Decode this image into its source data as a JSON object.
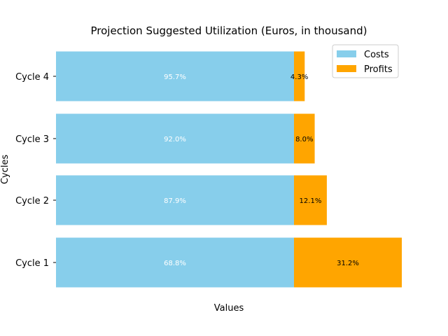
{
  "chart_data": {
    "type": "bar",
    "orientation": "horizontal",
    "stacked": true,
    "title": "Projection Suggested Utilization (Euros, in thousand)",
    "xlabel": "Values",
    "ylabel": "Cycles",
    "categories": [
      "Cycle 1",
      "Cycle 2",
      "Cycle 3",
      "Cycle 4"
    ],
    "series": [
      {
        "name": "Costs",
        "color": "#87ceeb",
        "label_color": "#ffffff",
        "values": [
          100,
          100,
          100,
          100
        ],
        "labels": [
          "68.8%",
          "87.9%",
          "92.0%",
          "95.7%"
        ]
      },
      {
        "name": "Profits",
        "color": "#ffa500",
        "label_color": "#000000",
        "values": [
          45.3,
          13.8,
          8.7,
          4.5
        ],
        "labels": [
          "31.2%",
          "12.1%",
          "8.0%",
          "4.3%"
        ]
      }
    ],
    "xlim": [
      0,
      145.3
    ],
    "grid": false,
    "legend_position": "top-right"
  }
}
